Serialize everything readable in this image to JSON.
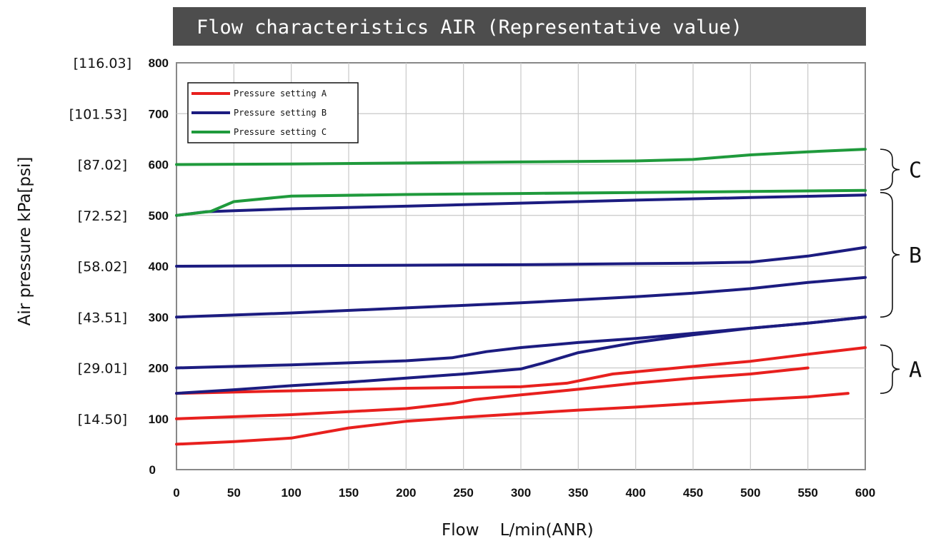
{
  "chart_data": {
    "type": "line",
    "title": "Flow characteristics  AIR (Representative value)",
    "xlabel": "Flow    L/min(ANR)",
    "ylabel": "Air pressure kPa[psi]",
    "xlim": [
      0,
      600
    ],
    "ylim": [
      0,
      800
    ],
    "grid": true,
    "legend_position": "top-left",
    "x_ticks": [
      "0",
      "50",
      "100",
      "150",
      "200",
      "250",
      "300",
      "350",
      "400",
      "450",
      "500",
      "550",
      "600"
    ],
    "y_ticks": [
      "0",
      "100",
      "200",
      "300",
      "400",
      "500",
      "600",
      "700",
      "800"
    ],
    "y_psi_labels": [
      "[14.50]",
      "[29.01]",
      "[43.51]",
      "[58.02]",
      "[72.52]",
      "[87.02]",
      "[101.53]",
      "[116.03]"
    ],
    "legend": [
      {
        "label": "Pressure setting A",
        "color": "#e8201e"
      },
      {
        "label": "Pressure setting B",
        "color": "#1c1c80"
      },
      {
        "label": "Pressure setting C",
        "color": "#1f9a3c"
      }
    ],
    "brackets": [
      {
        "label": "C",
        "from": 550,
        "to": 630
      },
      {
        "label": "B",
        "from": 300,
        "to": 545
      },
      {
        "label": "A",
        "from": 150,
        "to": 245
      }
    ],
    "series": [
      {
        "group": "A",
        "color": "#e8201e",
        "points": [
          [
            0,
            50
          ],
          [
            50,
            55
          ],
          [
            100,
            62
          ],
          [
            150,
            82
          ],
          [
            200,
            95
          ],
          [
            250,
            103
          ],
          [
            300,
            110
          ],
          [
            350,
            117
          ],
          [
            400,
            123
          ],
          [
            450,
            130
          ],
          [
            500,
            137
          ],
          [
            550,
            143
          ],
          [
            585,
            150
          ]
        ]
      },
      {
        "group": "A",
        "color": "#e8201e",
        "points": [
          [
            0,
            100
          ],
          [
            50,
            104
          ],
          [
            100,
            108
          ],
          [
            150,
            114
          ],
          [
            200,
            120
          ],
          [
            240,
            130
          ],
          [
            260,
            138
          ],
          [
            300,
            147
          ],
          [
            350,
            158
          ],
          [
            400,
            170
          ],
          [
            450,
            180
          ],
          [
            500,
            188
          ],
          [
            550,
            200
          ]
        ]
      },
      {
        "group": "A",
        "color": "#e8201e",
        "points": [
          [
            0,
            150
          ],
          [
            100,
            155
          ],
          [
            200,
            160
          ],
          [
            300,
            163
          ],
          [
            340,
            170
          ],
          [
            380,
            188
          ],
          [
            450,
            203
          ],
          [
            500,
            213
          ],
          [
            550,
            227
          ],
          [
            600,
            240
          ]
        ]
      },
      {
        "group": "B",
        "color": "#1c1c80",
        "points": [
          [
            0,
            150
          ],
          [
            50,
            157
          ],
          [
            100,
            165
          ],
          [
            150,
            172
          ],
          [
            200,
            180
          ],
          [
            250,
            188
          ],
          [
            300,
            198
          ],
          [
            320,
            210
          ],
          [
            350,
            230
          ],
          [
            400,
            250
          ],
          [
            450,
            265
          ],
          [
            500,
            278
          ],
          [
            550,
            288
          ],
          [
            600,
            300
          ]
        ]
      },
      {
        "group": "B",
        "color": "#1c1c80",
        "points": [
          [
            0,
            200
          ],
          [
            50,
            203
          ],
          [
            100,
            206
          ],
          [
            150,
            210
          ],
          [
            200,
            214
          ],
          [
            240,
            220
          ],
          [
            270,
            232
          ],
          [
            300,
            240
          ],
          [
            350,
            250
          ],
          [
            400,
            258
          ],
          [
            450,
            268
          ],
          [
            500,
            278
          ],
          [
            550,
            288
          ],
          [
            600,
            300
          ]
        ]
      },
      {
        "group": "B",
        "color": "#1c1c80",
        "points": [
          [
            0,
            300
          ],
          [
            100,
            308
          ],
          [
            200,
            318
          ],
          [
            300,
            328
          ],
          [
            400,
            340
          ],
          [
            450,
            347
          ],
          [
            500,
            356
          ],
          [
            550,
            368
          ],
          [
            600,
            378
          ]
        ]
      },
      {
        "group": "B",
        "color": "#1c1c80",
        "points": [
          [
            0,
            400
          ],
          [
            100,
            401
          ],
          [
            200,
            402
          ],
          [
            300,
            403
          ],
          [
            400,
            405
          ],
          [
            450,
            406
          ],
          [
            500,
            408
          ],
          [
            550,
            420
          ],
          [
            600,
            437
          ]
        ]
      },
      {
        "group": "B",
        "color": "#1c1c80",
        "points": [
          [
            0,
            500
          ],
          [
            25,
            507
          ],
          [
            50,
            509
          ],
          [
            100,
            513
          ],
          [
            200,
            518
          ],
          [
            300,
            524
          ],
          [
            400,
            530
          ],
          [
            500,
            535
          ],
          [
            600,
            540
          ]
        ]
      },
      {
        "group": "C",
        "color": "#1f9a3c",
        "points": [
          [
            0,
            500
          ],
          [
            30,
            508
          ],
          [
            50,
            527
          ],
          [
            100,
            538
          ],
          [
            200,
            541
          ],
          [
            300,
            543
          ],
          [
            400,
            545
          ],
          [
            500,
            547
          ],
          [
            600,
            549
          ]
        ]
      },
      {
        "group": "C",
        "color": "#1f9a3c",
        "points": [
          [
            0,
            600
          ],
          [
            100,
            601
          ],
          [
            200,
            603
          ],
          [
            300,
            605
          ],
          [
            400,
            607
          ],
          [
            450,
            610
          ],
          [
            500,
            619
          ],
          [
            550,
            625
          ],
          [
            600,
            630
          ]
        ]
      }
    ]
  }
}
